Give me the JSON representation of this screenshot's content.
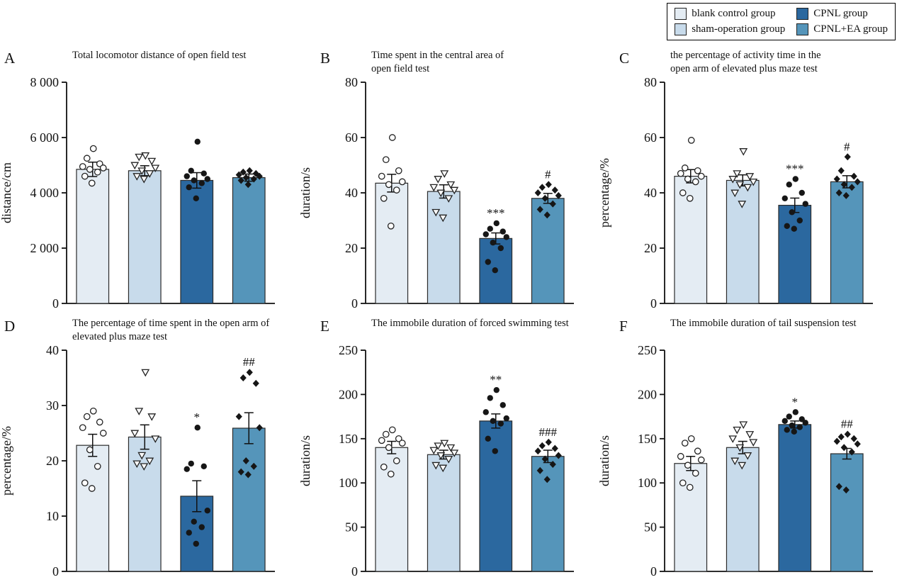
{
  "legend": {
    "items": [
      {
        "label": "blank control group",
        "color": "#e4ecf3"
      },
      {
        "label": "CPNL group",
        "color": "#2b689f"
      },
      {
        "label": "sham-operation group",
        "color": "#c8dbeb"
      },
      {
        "label": "CPNL+EA group",
        "color": "#5595ba"
      }
    ]
  },
  "groups": [
    {
      "label": "blank control group",
      "color": "#e4ecf3",
      "marker": "circle-open"
    },
    {
      "label": "sham-operation group",
      "color": "#c8dbeb",
      "marker": "triangle-down-open"
    },
    {
      "label": "CPNL group",
      "color": "#2b689f",
      "marker": "circle-filled"
    },
    {
      "label": "CPNL+EA group",
      "color": "#5595ba",
      "marker": "diamond-filled"
    }
  ],
  "chart_data": [
    {
      "panel": "A",
      "type": "bar",
      "title_lines": [
        "Total locomotor distance of open field test"
      ],
      "ylabel": "distance/cm",
      "ylim": [
        0,
        8000
      ],
      "yticks": [
        0,
        2000,
        4000,
        6000,
        8000
      ],
      "ytick_labels": [
        "0",
        "2 000",
        "4 000",
        "6 000",
        "8 000"
      ],
      "categories": [
        "blank control group",
        "sham-operation group",
        "CPNL group",
        "CPNL+EA group"
      ],
      "means": [
        4850,
        4800,
        4450,
        4550
      ],
      "sem": [
        260,
        180,
        280,
        130
      ],
      "significance": [
        "",
        "",
        "",
        ""
      ],
      "points": [
        [
          5600,
          5250,
          5050,
          4950,
          4900,
          4850,
          4750,
          4600,
          4350
        ],
        [
          5350,
          5300,
          5150,
          5000,
          4900,
          4800,
          4700,
          4600,
          4500
        ],
        [
          5850,
          4800,
          4700,
          4600,
          4500,
          4450,
          4350,
          4200,
          3800
        ],
        [
          4800,
          4750,
          4700,
          4650,
          4600,
          4550,
          4500,
          4450,
          4300
        ]
      ]
    },
    {
      "panel": "B",
      "type": "bar",
      "title_lines": [
        "Time spent in the central area of",
        "open field test"
      ],
      "ylabel": "duration/s",
      "ylim": [
        0,
        80
      ],
      "yticks": [
        0,
        20,
        40,
        60,
        80
      ],
      "ytick_labels": [
        "0",
        "20",
        "40",
        "60",
        "80"
      ],
      "categories": [
        "blank control group",
        "sham-operation group",
        "CPNL group",
        "CPNL+EA group"
      ],
      "means": [
        43.5,
        40.5,
        23.5,
        38
      ],
      "sem": [
        3.2,
        2.4,
        2.0,
        1.8
      ],
      "significance": [
        "",
        "",
        "***",
        "#"
      ],
      "points": [
        [
          60,
          52,
          48,
          46,
          44,
          43,
          41,
          38,
          28
        ],
        [
          47,
          45,
          43,
          42,
          41,
          40,
          38,
          33,
          31
        ],
        [
          29,
          27,
          26,
          25,
          24,
          22,
          20,
          15,
          12
        ],
        [
          43,
          42,
          41,
          40,
          39,
          38,
          36,
          34,
          32
        ]
      ]
    },
    {
      "panel": "C",
      "type": "bar",
      "title_lines": [
        "the percentage of activity time in the",
        "open arm of elevated plus maze test"
      ],
      "ylabel": "percentage/%",
      "ylim": [
        0,
        80
      ],
      "yticks": [
        0,
        20,
        40,
        60,
        80
      ],
      "ytick_labels": [
        "0",
        "20",
        "40",
        "60",
        "80"
      ],
      "categories": [
        "blank control group",
        "sham-operation group",
        "CPNL group",
        "CPNL+EA group"
      ],
      "means": [
        46,
        44.5,
        35.5,
        44
      ],
      "sem": [
        2.4,
        2.0,
        2.6,
        2.2
      ],
      "significance": [
        "",
        "",
        "***",
        "#"
      ],
      "points": [
        [
          59,
          49,
          48,
          47,
          46,
          45,
          44,
          40,
          38
        ],
        [
          55,
          47,
          46,
          45,
          44,
          43,
          42,
          40,
          36
        ],
        [
          45,
          43,
          40,
          38,
          36,
          33,
          30,
          28,
          27
        ],
        [
          53,
          48,
          46,
          45,
          44,
          43,
          42,
          40,
          39
        ]
      ]
    },
    {
      "panel": "D",
      "type": "bar",
      "title_lines": [
        "The percentage of time spent in the open arm of",
        "elevated plus maze test"
      ],
      "ylabel": "percentage/%",
      "ylim": [
        0,
        40
      ],
      "yticks": [
        0,
        10,
        20,
        30,
        40
      ],
      "ytick_labels": [
        "0",
        "10",
        "20",
        "30",
        "40"
      ],
      "categories": [
        "blank control group",
        "sham-operation group",
        "CPNL group",
        "CPNL+EA group"
      ],
      "means": [
        22.8,
        24.3,
        13.6,
        25.9
      ],
      "sem": [
        2.0,
        2.2,
        2.8,
        2.8
      ],
      "significance": [
        "",
        "",
        "*",
        "##"
      ],
      "points": [
        [
          29,
          28,
          27,
          26,
          25,
          22,
          19,
          16,
          15
        ],
        [
          36,
          29,
          28,
          25,
          24,
          21,
          20,
          19.5,
          19
        ],
        [
          26,
          19.5,
          19,
          18.5,
          11,
          9,
          8,
          7,
          5
        ],
        [
          36,
          35,
          34,
          28,
          26,
          20,
          19,
          18,
          17.5
        ]
      ]
    },
    {
      "panel": "E",
      "type": "bar",
      "title_lines": [
        "The immobile duration of forced swimming test"
      ],
      "ylabel": "duration/s",
      "ylim": [
        0,
        250
      ],
      "yticks": [
        0,
        50,
        100,
        150,
        200,
        250
      ],
      "ytick_labels": [
        "0",
        "50",
        "100",
        "150",
        "200",
        "250"
      ],
      "categories": [
        "blank control group",
        "sham-operation group",
        "CPNL group",
        "CPNL+EA group"
      ],
      "means": [
        140,
        132,
        170,
        130
      ],
      "sem": [
        7,
        5,
        8,
        7
      ],
      "significance": [
        "",
        "",
        "**",
        "###"
      ],
      "points": [
        [
          160,
          155,
          150,
          148,
          145,
          140,
          125,
          118,
          110
        ],
        [
          145,
          142,
          140,
          137,
          134,
          131,
          127,
          120,
          117
        ],
        [
          205,
          196,
          188,
          180,
          173,
          170,
          167,
          150,
          136
        ],
        [
          146,
          142,
          139,
          136,
          131,
          127,
          121,
          114,
          104
        ]
      ]
    },
    {
      "panel": "F",
      "type": "bar",
      "title_lines": [
        "The immobile duration of tail suspension test"
      ],
      "ylabel": "duration/s",
      "ylim": [
        0,
        250
      ],
      "yticks": [
        0,
        50,
        100,
        150,
        200,
        250
      ],
      "ytick_labels": [
        "0",
        "50",
        "100",
        "150",
        "200",
        "250"
      ],
      "categories": [
        "blank control group",
        "sham-operation group",
        "CPNL group",
        "CPNL+EA group"
      ],
      "means": [
        122,
        140,
        166,
        133
      ],
      "sem": [
        8,
        7,
        4,
        6
      ],
      "significance": [
        "",
        "",
        "*",
        "##"
      ],
      "points": [
        [
          150,
          145,
          136,
          130,
          126,
          120,
          111,
          100,
          95
        ],
        [
          166,
          160,
          155,
          150,
          146,
          140,
          131,
          125,
          120
        ],
        [
          180,
          175,
          172,
          170,
          168,
          165,
          163,
          160,
          158
        ],
        [
          155,
          152,
          150,
          147,
          144,
          140,
          135,
          96,
          92
        ]
      ]
    }
  ]
}
